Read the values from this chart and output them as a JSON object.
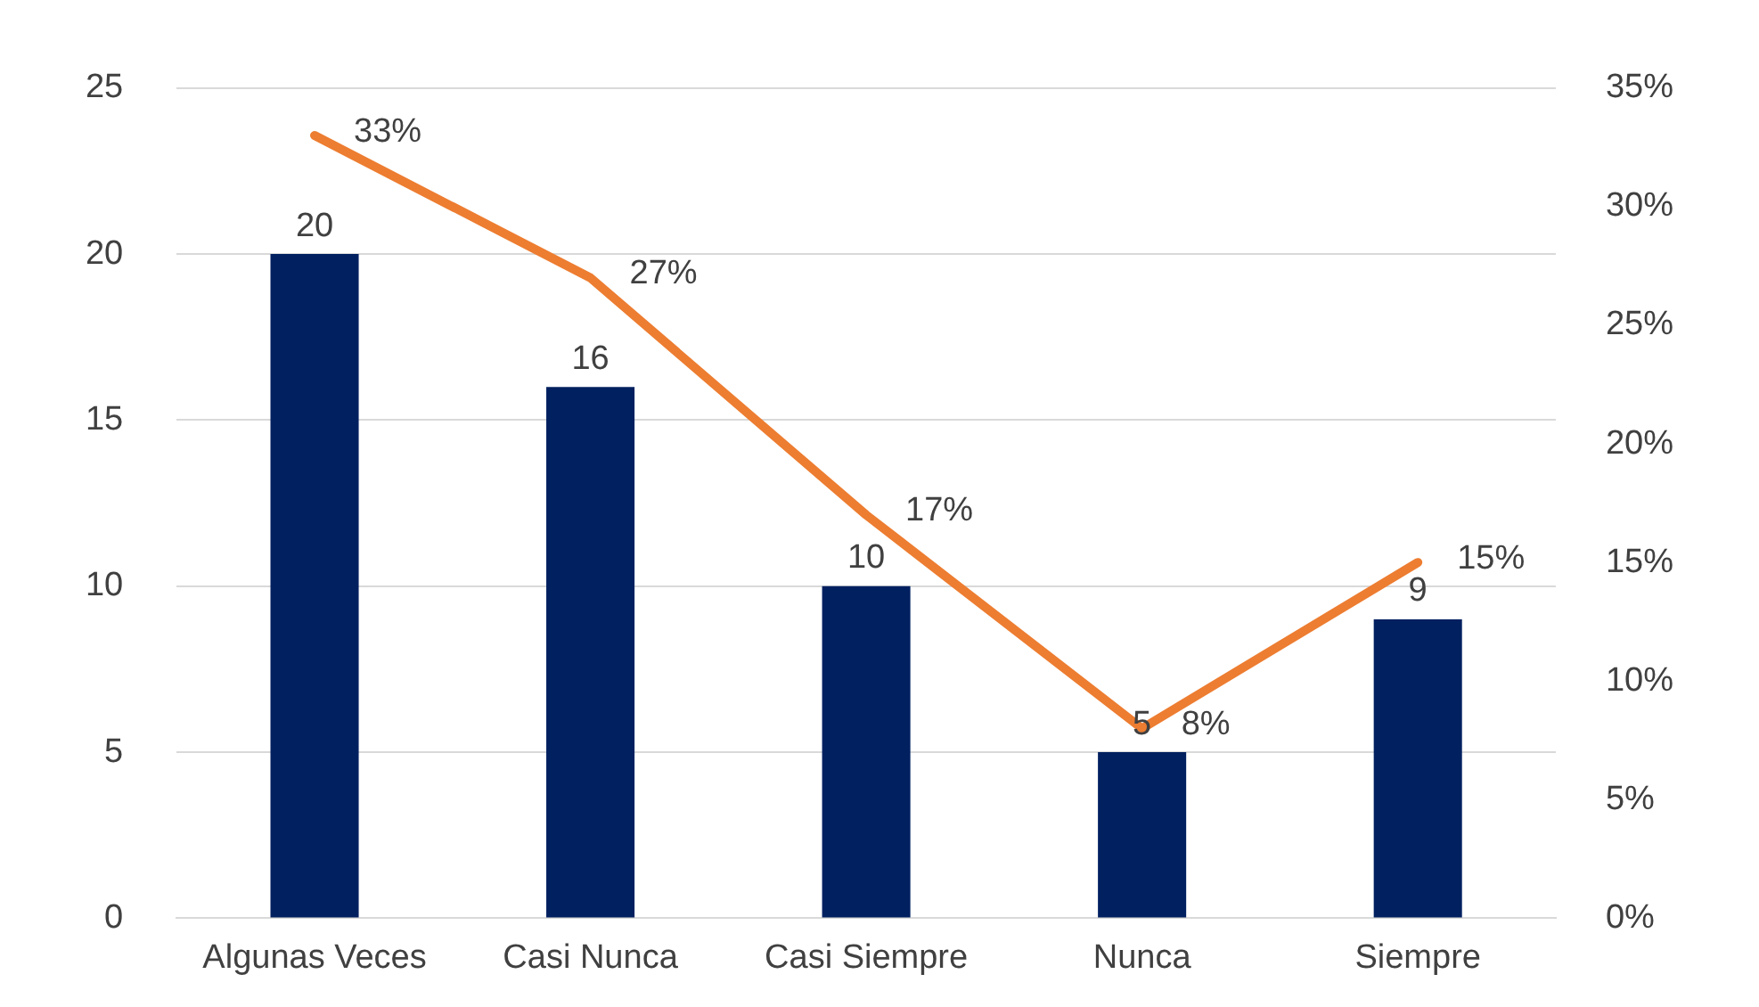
{
  "chart_data": {
    "type": "bar",
    "categories": [
      "Algunas Veces",
      "Casi Nunca",
      "Casi Siempre",
      "Nunca",
      "Siempre"
    ],
    "series": [
      {
        "color": "#002060",
        "values": [
          20,
          16,
          10,
          5,
          9
        ],
        "value_labels": [
          "20",
          "16",
          "10",
          "5",
          "9"
        ]
      },
      {
        "type": "line",
        "axis": "y2",
        "color": "#ed7d31",
        "values": [
          33,
          27,
          17,
          8,
          15
        ],
        "value_labels": [
          "33%",
          "27%",
          "17%",
          "8%",
          "15%"
        ]
      }
    ],
    "ylim": [
      0,
      25
    ],
    "yticks": [
      0,
      5,
      10,
      15,
      20,
      25
    ],
    "y2lim": [
      0,
      35
    ],
    "y2ticks": [
      {
        "value": 0,
        "label": "0%"
      },
      {
        "value": 5,
        "label": "5%"
      },
      {
        "value": 10,
        "label": "10%"
      },
      {
        "value": 15,
        "label": "15%"
      },
      {
        "value": 20,
        "label": "20%"
      },
      {
        "value": 25,
        "label": "25%"
      },
      {
        "value": 30,
        "label": "30%"
      },
      {
        "value": 35,
        "label": "35%"
      }
    ],
    "grid": "y",
    "legend": false,
    "marker": "none",
    "line_style": "solid"
  }
}
